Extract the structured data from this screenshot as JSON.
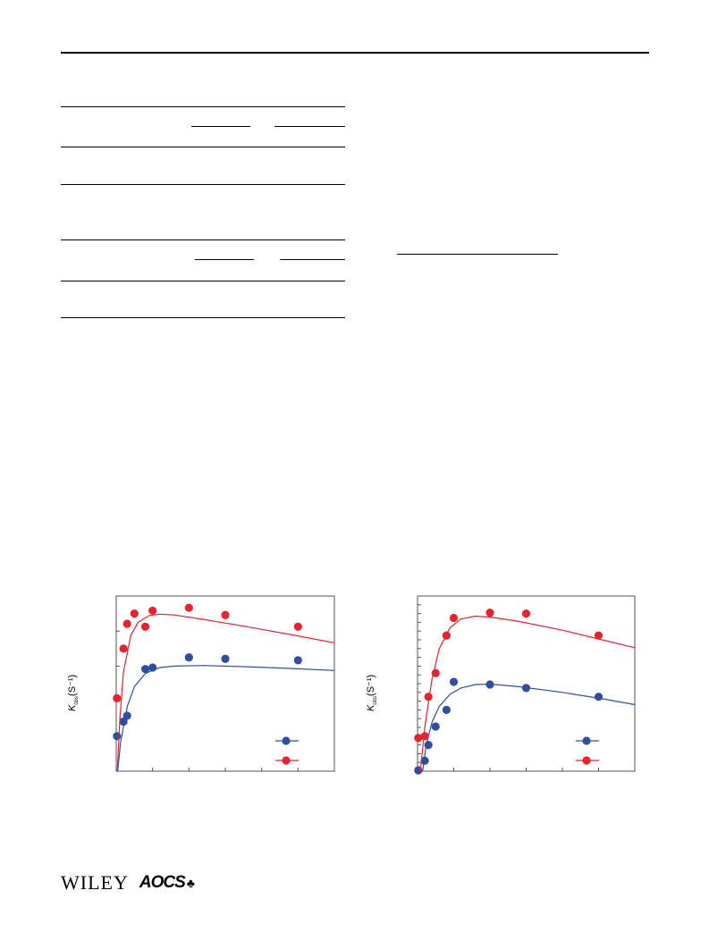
{
  "header": {},
  "footer": {
    "publisher": "WILEY",
    "society": "AOCS",
    "society_mark": "♣"
  },
  "y_axis_label": {
    "symbol": "K",
    "subscript": "obs",
    "unit": "(S⁻¹)"
  },
  "chart_data": [
    {
      "type": "scatter",
      "title": "",
      "xlabel": "",
      "ylabel": "Kobs (S⁻¹)",
      "xlim": [
        0,
        30
      ],
      "ylim": [
        0,
        6
      ],
      "grid": false,
      "legend_position": "bottom-right",
      "series": [
        {
          "color": "#2f4f9e",
          "points": [
            [
              0.1,
              1.2
            ],
            [
              1.0,
              1.7
            ],
            [
              1.5,
              1.9
            ],
            [
              4.0,
              3.5
            ],
            [
              5.0,
              3.55
            ],
            [
              10.0,
              3.9
            ],
            [
              15.0,
              3.85
            ],
            [
              25.0,
              3.8
            ]
          ],
          "fit": [
            [
              0.2,
              0
            ],
            [
              0.6,
              1.0
            ],
            [
              1.5,
              2.2
            ],
            [
              2.5,
              2.9
            ],
            [
              4,
              3.35
            ],
            [
              6,
              3.55
            ],
            [
              8,
              3.6
            ],
            [
              12,
              3.62
            ],
            [
              18,
              3.58
            ],
            [
              24,
              3.52
            ],
            [
              30,
              3.45
            ]
          ]
        },
        {
          "color": "#e8222e",
          "points": [
            [
              0.1,
              2.5
            ],
            [
              1.0,
              4.2
            ],
            [
              1.5,
              5.05
            ],
            [
              2.5,
              5.4
            ],
            [
              4.0,
              4.95
            ],
            [
              5.0,
              5.5
            ],
            [
              10.0,
              5.6
            ],
            [
              15.0,
              5.35
            ],
            [
              25.0,
              4.95
            ]
          ],
          "fit": [
            [
              0.15,
              0
            ],
            [
              0.5,
              1.8
            ],
            [
              1.0,
              3.4
            ],
            [
              2.0,
              4.65
            ],
            [
              3.0,
              5.1
            ],
            [
              4.5,
              5.33
            ],
            [
              6.0,
              5.38
            ],
            [
              8,
              5.35
            ],
            [
              12,
              5.2
            ],
            [
              18,
              4.95
            ],
            [
              24,
              4.68
            ],
            [
              30,
              4.4
            ]
          ]
        }
      ]
    },
    {
      "type": "scatter",
      "title": "",
      "xlabel": "",
      "ylabel": "Kobs (S⁻¹)",
      "xlim": [
        0,
        30
      ],
      "ylim": [
        0,
        20
      ],
      "grid": false,
      "legend_position": "bottom-right",
      "series": [
        {
          "color": "#2f4f9e",
          "points": [
            [
              0.1,
              0.1
            ],
            [
              1.0,
              1.2
            ],
            [
              1.5,
              3.0
            ],
            [
              2.5,
              5.1
            ],
            [
              4.0,
              7.0
            ],
            [
              5.0,
              10.2
            ],
            [
              10.0,
              9.9
            ],
            [
              15.0,
              9.5
            ],
            [
              25.0,
              8.5
            ]
          ],
          "fit": [
            [
              0.7,
              0
            ],
            [
              1.2,
              3.0
            ],
            [
              2.0,
              5.6
            ],
            [
              3.0,
              7.4
            ],
            [
              4.5,
              8.8
            ],
            [
              6,
              9.5
            ],
            [
              8,
              9.9
            ],
            [
              10,
              9.95
            ],
            [
              14,
              9.65
            ],
            [
              20,
              9.0
            ],
            [
              26,
              8.2
            ],
            [
              30,
              7.6
            ]
          ]
        },
        {
          "color": "#e8222e",
          "points": [
            [
              0.1,
              3.8
            ],
            [
              1.0,
              4.0
            ],
            [
              1.5,
              8.5
            ],
            [
              2.5,
              11.2
            ],
            [
              4.0,
              15.5
            ],
            [
              5.0,
              17.5
            ],
            [
              10.0,
              18.1
            ],
            [
              15.0,
              18.0
            ],
            [
              25.0,
              15.5
            ]
          ],
          "fit": [
            [
              0.4,
              0
            ],
            [
              1.0,
              5.0
            ],
            [
              2.0,
              10.5
            ],
            [
              3.0,
              14.0
            ],
            [
              4.5,
              16.4
            ],
            [
              6,
              17.4
            ],
            [
              8,
              17.7
            ],
            [
              10,
              17.6
            ],
            [
              14,
              17.1
            ],
            [
              20,
              16.1
            ],
            [
              26,
              14.9
            ],
            [
              30,
              14.1
            ]
          ]
        }
      ]
    }
  ]
}
